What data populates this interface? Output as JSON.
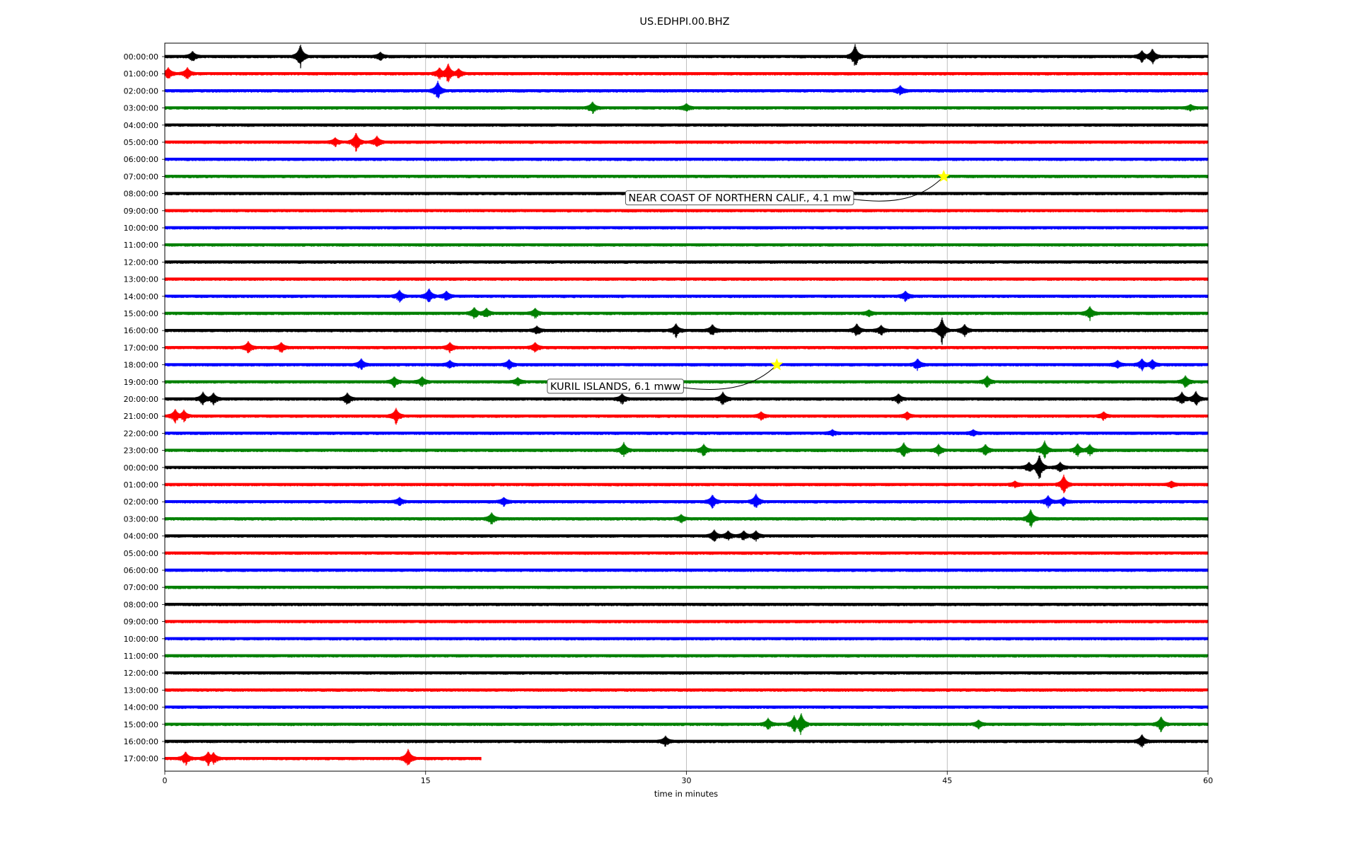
{
  "chart_data": {
    "type": "line",
    "title": "US.EDHPI.00.BHZ",
    "xlabel": "time in minutes",
    "ylabel": "",
    "xlim": [
      0,
      60
    ],
    "xticks": [
      0,
      15,
      30,
      45,
      60
    ],
    "grid": "vertical lines at x ticks",
    "row_labels": [
      "00:00:00",
      "01:00:00",
      "02:00:00",
      "03:00:00",
      "04:00:00",
      "05:00:00",
      "06:00:00",
      "07:00:00",
      "08:00:00",
      "09:00:00",
      "10:00:00",
      "11:00:00",
      "12:00:00",
      "13:00:00",
      "14:00:00",
      "15:00:00",
      "16:00:00",
      "17:00:00",
      "18:00:00",
      "19:00:00",
      "20:00:00",
      "21:00:00",
      "22:00:00",
      "23:00:00",
      "00:00:00",
      "01:00:00",
      "02:00:00",
      "03:00:00",
      "04:00:00",
      "05:00:00",
      "06:00:00",
      "07:00:00",
      "08:00:00",
      "09:00:00",
      "10:00:00",
      "11:00:00",
      "12:00:00",
      "13:00:00",
      "14:00:00",
      "15:00:00",
      "16:00:00",
      "17:00:00"
    ],
    "trace_colors": [
      "#000000",
      "#ff0000",
      "#0000ff",
      "#008000"
    ],
    "last_row_end_minute": 18.2,
    "events": [
      {
        "row": 7,
        "minute": 44.8,
        "label": "NEAR COAST OF NORTHERN CALIF., 4.1 mw",
        "label_minute": 26.5,
        "label_row": 8.25
      },
      {
        "row": 18,
        "minute": 35.2,
        "label": "KURIL ISLANDS, 6.1 mww",
        "label_minute": 22.0,
        "label_row": 19.25
      }
    ],
    "bursts": [
      {
        "row": 0,
        "minute": 7.8,
        "amp": 1.3
      },
      {
        "row": 0,
        "minute": 1.6,
        "amp": 0.5
      },
      {
        "row": 0,
        "minute": 12.4,
        "amp": 0.4
      },
      {
        "row": 0,
        "minute": 39.7,
        "amp": 1.3
      },
      {
        "row": 0,
        "minute": 56.2,
        "amp": 0.6
      },
      {
        "row": 0,
        "minute": 56.8,
        "amp": 0.8
      },
      {
        "row": 1,
        "minute": 0.2,
        "amp": 0.6
      },
      {
        "row": 1,
        "minute": 1.3,
        "amp": 0.6
      },
      {
        "row": 1,
        "minute": 16.3,
        "amp": 1.1
      },
      {
        "row": 1,
        "minute": 15.8,
        "amp": 0.6
      },
      {
        "row": 1,
        "minute": 16.9,
        "amp": 0.5
      },
      {
        "row": 2,
        "minute": 15.7,
        "amp": 1.0
      },
      {
        "row": 2,
        "minute": 42.3,
        "amp": 0.5
      },
      {
        "row": 3,
        "minute": 24.6,
        "amp": 0.6
      },
      {
        "row": 3,
        "minute": 30.0,
        "amp": 0.4
      },
      {
        "row": 3,
        "minute": 59.0,
        "amp": 0.3
      },
      {
        "row": 5,
        "minute": 9.8,
        "amp": 0.4
      },
      {
        "row": 5,
        "minute": 11.0,
        "amp": 1.0
      },
      {
        "row": 5,
        "minute": 12.2,
        "amp": 0.6
      },
      {
        "row": 14,
        "minute": 13.5,
        "amp": 0.6
      },
      {
        "row": 14,
        "minute": 15.2,
        "amp": 0.8
      },
      {
        "row": 14,
        "minute": 16.2,
        "amp": 0.5
      },
      {
        "row": 14,
        "minute": 42.6,
        "amp": 0.5
      },
      {
        "row": 15,
        "minute": 17.8,
        "amp": 0.6
      },
      {
        "row": 15,
        "minute": 18.5,
        "amp": 0.5
      },
      {
        "row": 15,
        "minute": 21.3,
        "amp": 0.5
      },
      {
        "row": 15,
        "minute": 40.5,
        "amp": 0.3
      },
      {
        "row": 15,
        "minute": 53.2,
        "amp": 0.7
      },
      {
        "row": 16,
        "minute": 21.4,
        "amp": 0.4
      },
      {
        "row": 16,
        "minute": 29.4,
        "amp": 0.7
      },
      {
        "row": 16,
        "minute": 31.5,
        "amp": 0.6
      },
      {
        "row": 16,
        "minute": 39.8,
        "amp": 0.7
      },
      {
        "row": 16,
        "minute": 44.7,
        "amp": 1.4
      },
      {
        "row": 16,
        "minute": 46.0,
        "amp": 0.6
      },
      {
        "row": 16,
        "minute": 41.2,
        "amp": 0.5
      },
      {
        "row": 17,
        "minute": 4.8,
        "amp": 0.6
      },
      {
        "row": 17,
        "minute": 6.7,
        "amp": 0.5
      },
      {
        "row": 17,
        "minute": 16.4,
        "amp": 0.5
      },
      {
        "row": 17,
        "minute": 21.3,
        "amp": 0.5
      },
      {
        "row": 18,
        "minute": 11.3,
        "amp": 0.6
      },
      {
        "row": 18,
        "minute": 16.4,
        "amp": 0.4
      },
      {
        "row": 18,
        "minute": 19.8,
        "amp": 0.5
      },
      {
        "row": 18,
        "minute": 43.3,
        "amp": 0.6
      },
      {
        "row": 18,
        "minute": 54.8,
        "amp": 0.4
      },
      {
        "row": 18,
        "minute": 56.2,
        "amp": 0.6
      },
      {
        "row": 18,
        "minute": 56.8,
        "amp": 0.5
      },
      {
        "row": 19,
        "minute": 13.2,
        "amp": 0.5
      },
      {
        "row": 19,
        "minute": 14.8,
        "amp": 0.5
      },
      {
        "row": 19,
        "minute": 20.3,
        "amp": 0.4
      },
      {
        "row": 19,
        "minute": 47.3,
        "amp": 0.6
      },
      {
        "row": 19,
        "minute": 58.7,
        "amp": 0.6
      },
      {
        "row": 20,
        "minute": 2.2,
        "amp": 0.7
      },
      {
        "row": 20,
        "minute": 2.8,
        "amp": 0.6
      },
      {
        "row": 20,
        "minute": 10.5,
        "amp": 0.6
      },
      {
        "row": 20,
        "minute": 26.3,
        "amp": 0.5
      },
      {
        "row": 20,
        "minute": 32.1,
        "amp": 0.7
      },
      {
        "row": 20,
        "minute": 42.2,
        "amp": 0.5
      },
      {
        "row": 20,
        "minute": 58.5,
        "amp": 0.7
      },
      {
        "row": 20,
        "minute": 59.3,
        "amp": 0.8
      },
      {
        "row": 21,
        "minute": 0.6,
        "amp": 0.7
      },
      {
        "row": 21,
        "minute": 1.1,
        "amp": 0.6
      },
      {
        "row": 21,
        "minute": 13.3,
        "amp": 0.8
      },
      {
        "row": 21,
        "minute": 34.3,
        "amp": 0.4
      },
      {
        "row": 21,
        "minute": 42.7,
        "amp": 0.4
      },
      {
        "row": 21,
        "minute": 54.0,
        "amp": 0.4
      },
      {
        "row": 22,
        "minute": 38.4,
        "amp": 0.3
      },
      {
        "row": 22,
        "minute": 46.5,
        "amp": 0.3
      },
      {
        "row": 23,
        "minute": 26.4,
        "amp": 0.8
      },
      {
        "row": 23,
        "minute": 31.0,
        "amp": 0.6
      },
      {
        "row": 23,
        "minute": 42.5,
        "amp": 0.8
      },
      {
        "row": 23,
        "minute": 44.5,
        "amp": 0.6
      },
      {
        "row": 23,
        "minute": 47.2,
        "amp": 0.6
      },
      {
        "row": 23,
        "minute": 50.6,
        "amp": 1.0
      },
      {
        "row": 23,
        "minute": 52.5,
        "amp": 0.7
      },
      {
        "row": 23,
        "minute": 53.2,
        "amp": 0.6
      },
      {
        "row": 24,
        "minute": 50.3,
        "amp": 1.4
      },
      {
        "row": 24,
        "minute": 49.7,
        "amp": 0.5
      },
      {
        "row": 24,
        "minute": 51.5,
        "amp": 0.5
      },
      {
        "row": 25,
        "minute": 51.7,
        "amp": 1.0
      },
      {
        "row": 25,
        "minute": 48.9,
        "amp": 0.3
      },
      {
        "row": 25,
        "minute": 57.9,
        "amp": 0.3
      },
      {
        "row": 26,
        "minute": 31.5,
        "amp": 0.7
      },
      {
        "row": 26,
        "minute": 34.0,
        "amp": 0.8
      },
      {
        "row": 26,
        "minute": 13.5,
        "amp": 0.4
      },
      {
        "row": 26,
        "minute": 19.5,
        "amp": 0.4
      },
      {
        "row": 26,
        "minute": 50.8,
        "amp": 0.6
      },
      {
        "row": 26,
        "minute": 51.7,
        "amp": 0.4
      },
      {
        "row": 27,
        "minute": 18.8,
        "amp": 0.6
      },
      {
        "row": 27,
        "minute": 29.7,
        "amp": 0.4
      },
      {
        "row": 27,
        "minute": 49.8,
        "amp": 1.0
      },
      {
        "row": 28,
        "minute": 31.6,
        "amp": 0.6
      },
      {
        "row": 28,
        "minute": 32.4,
        "amp": 0.5
      },
      {
        "row": 28,
        "minute": 33.3,
        "amp": 0.5
      },
      {
        "row": 28,
        "minute": 34.0,
        "amp": 0.5
      },
      {
        "row": 39,
        "minute": 34.7,
        "amp": 0.6
      },
      {
        "row": 39,
        "minute": 36.2,
        "amp": 0.9
      },
      {
        "row": 39,
        "minute": 36.6,
        "amp": 1.2
      },
      {
        "row": 39,
        "minute": 46.8,
        "amp": 0.4
      },
      {
        "row": 39,
        "minute": 57.3,
        "amp": 0.8
      },
      {
        "row": 40,
        "minute": 28.8,
        "amp": 0.5
      },
      {
        "row": 40,
        "minute": 56.2,
        "amp": 0.7
      },
      {
        "row": 41,
        "minute": 1.2,
        "amp": 0.7
      },
      {
        "row": 41,
        "minute": 2.5,
        "amp": 0.7
      },
      {
        "row": 41,
        "minute": 2.8,
        "amp": 0.6
      },
      {
        "row": 41,
        "minute": 14.0,
        "amp": 1.0
      }
    ]
  }
}
